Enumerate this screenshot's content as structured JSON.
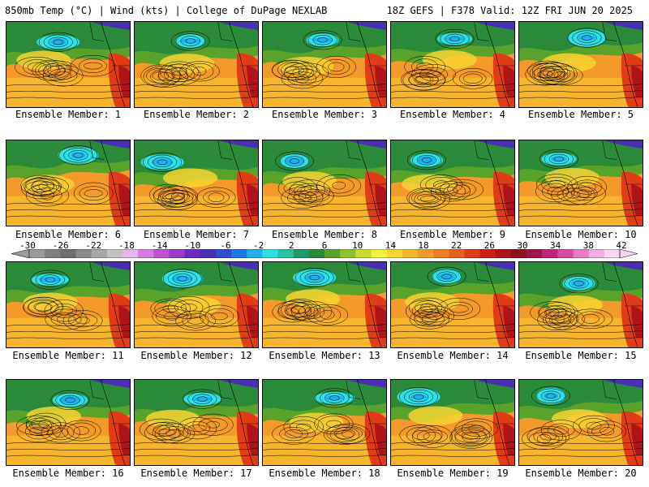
{
  "header": {
    "left": "850mb Temp (°C) | Wind (kts) | College of DuPage NEXLAB",
    "right": "18Z GEFS | F378 Valid: 12Z FRI JUN 20 2025"
  },
  "members": [
    "Ensemble Member: 1",
    "Ensemble Member: 2",
    "Ensemble Member: 3",
    "Ensemble Member: 4",
    "Ensemble Member: 5",
    "Ensemble Member: 6",
    "Ensemble Member: 7",
    "Ensemble Member: 8",
    "Ensemble Member: 9",
    "Ensemble Member: 10",
    "Ensemble Member: 11",
    "Ensemble Member: 12",
    "Ensemble Member: 13",
    "Ensemble Member: 14",
    "Ensemble Member: 15",
    "Ensemble Member: 16",
    "Ensemble Member: 17",
    "Ensemble Member: 18",
    "Ensemble Member: 19",
    "Ensemble Member: 20"
  ],
  "colorbar": {
    "ticks": [
      "-30",
      "-26",
      "-22",
      "-18",
      "-14",
      "-10",
      "-6",
      "-2",
      "2",
      "6",
      "10",
      "14",
      "18",
      "22",
      "26",
      "30",
      "34",
      "38",
      "42"
    ],
    "colors": [
      "#9a9a9a",
      "#7f7f7f",
      "#6e6e6e",
      "#8a8a8a",
      "#a6a6a6",
      "#c2c2c2",
      "#e8b4ec",
      "#d77be0",
      "#c44fd0",
      "#9b3cc6",
      "#6a2bc0",
      "#4a2fb5",
      "#2f4ed0",
      "#1e78e8",
      "#1fb0f0",
      "#2ee0e6",
      "#27c3a0",
      "#1f9a6a",
      "#2a8a3a",
      "#5aa32a",
      "#8fc12a",
      "#c8dc2e",
      "#f2f23a",
      "#f7d431",
      "#f7b52d",
      "#f39a2a",
      "#ef7d22",
      "#ea5f1c",
      "#e23b17",
      "#cf1c17",
      "#b0141b",
      "#8e1020",
      "#a0154a",
      "#c2267a",
      "#d94aa6",
      "#e87ac6",
      "#f2aee0",
      "#f8d6ef"
    ]
  }
}
